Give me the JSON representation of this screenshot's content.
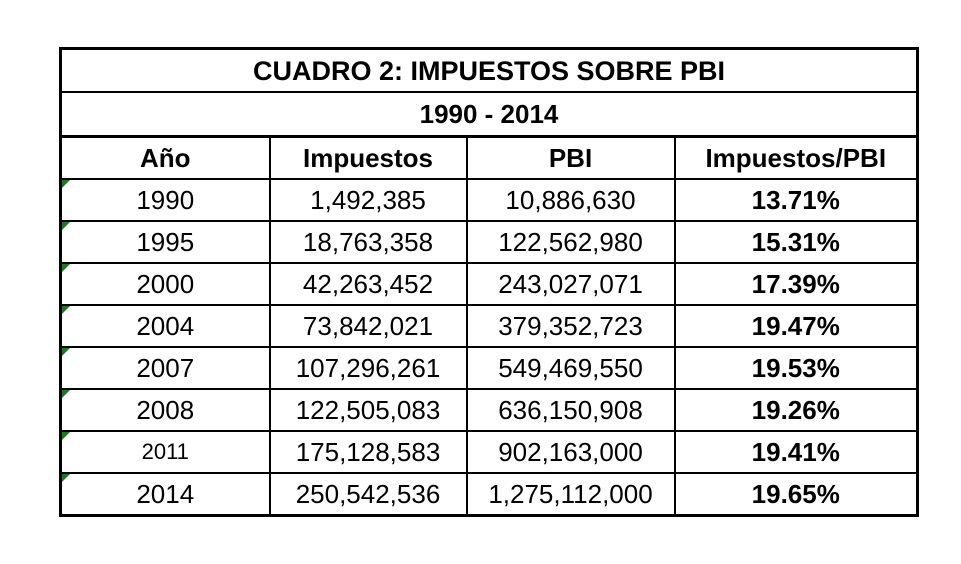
{
  "table": {
    "title": "CUADRO 2: IMPUESTOS SOBRE PBI",
    "subtitle": "1990  -  2014",
    "header": [
      "Año",
      "Impuestos",
      "PBI",
      "Impuestos/PBI"
    ],
    "rows": [
      [
        "1990",
        "1,492,385",
        "10,886,630",
        "13.71%"
      ],
      [
        "1995",
        "18,763,358",
        "122,562,980",
        "15.31%"
      ],
      [
        "2000",
        "42,263,452",
        "243,027,071",
        "17.39%"
      ],
      [
        "2004",
        "73,842,021",
        "379,352,723",
        "19.47%"
      ],
      [
        "2007",
        "107,296,261",
        "549,469,550",
        "19.53%"
      ],
      [
        "2008",
        "122,505,083",
        "636,150,908",
        "19.26%"
      ],
      [
        "2011",
        "175,128,583",
        "902,163,000",
        "19.41%"
      ],
      [
        "2014",
        "250,542,536",
        "1,275,112,000",
        "19.65%"
      ]
    ]
  }
}
